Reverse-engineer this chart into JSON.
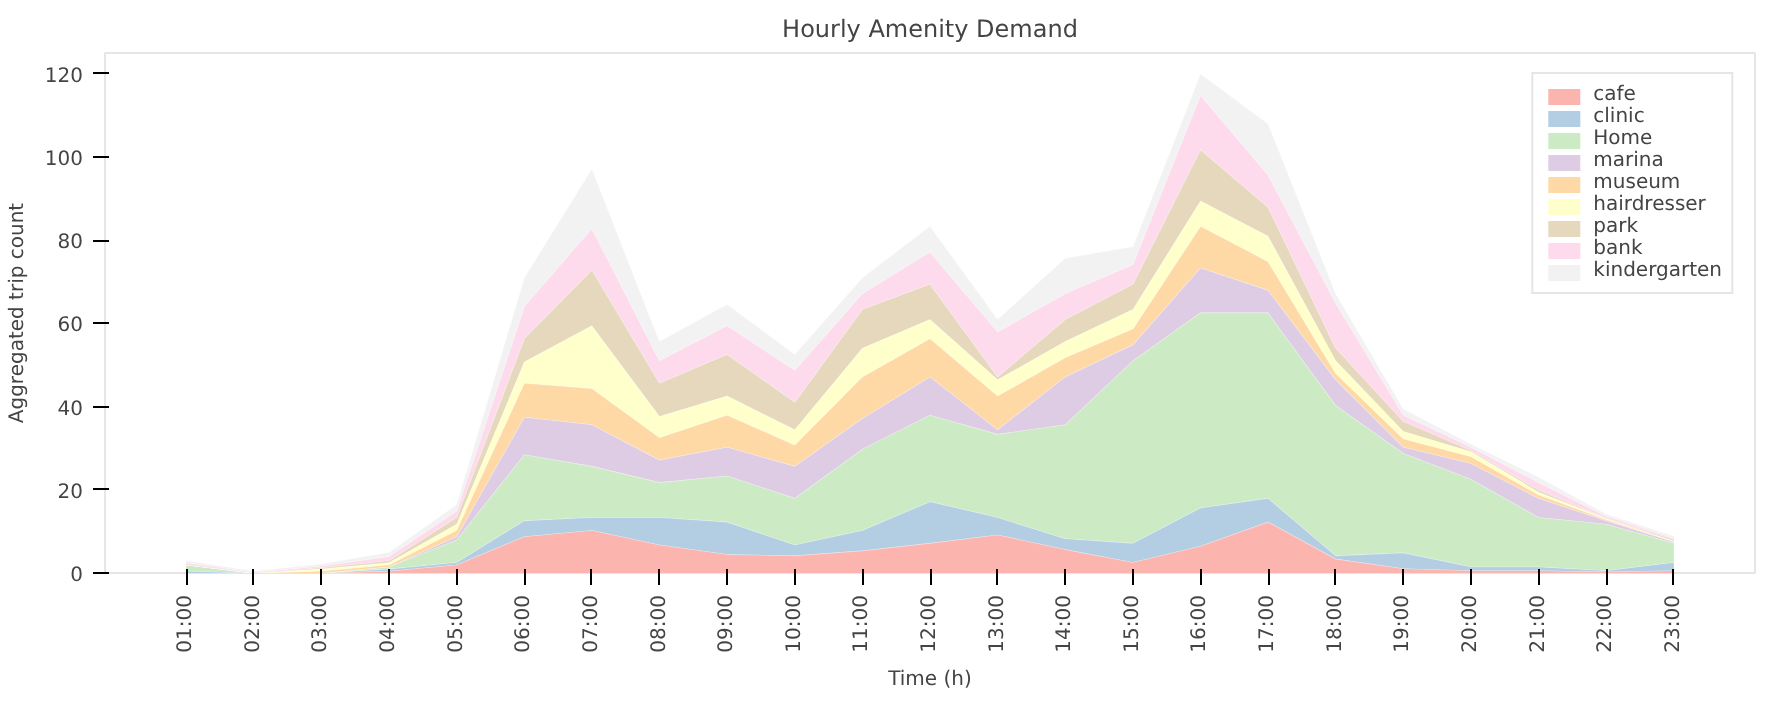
{
  "chart_data": {
    "type": "area",
    "stacked": true,
    "title": "Hourly Amenity Demand",
    "xlabel": "Time (h)",
    "ylabel": "Aggregated trip count",
    "categories": [
      "01:00",
      "02:00",
      "03:00",
      "04:00",
      "05:00",
      "06:00",
      "07:00",
      "08:00",
      "09:00",
      "10:00",
      "11:00",
      "12:00",
      "13:00",
      "14:00",
      "15:00",
      "16:00",
      "17:00",
      "18:00",
      "19:00",
      "20:00",
      "21:00",
      "22:00",
      "23:00"
    ],
    "ylim": [
      0,
      125
    ],
    "yticks": [
      0,
      20,
      40,
      60,
      80,
      100,
      120
    ],
    "grid": false,
    "legend": "top right",
    "series": [
      {
        "name": "cafe",
        "color": "#fbb4ae",
        "values": [
          0,
          0,
          0,
          0.5,
          2,
          8.8,
          10.3,
          6.8,
          4.5,
          4.2,
          5.4,
          7.2,
          9.2,
          5.7,
          2.6,
          6.5,
          12.3,
          3.4,
          1.1,
          0.6,
          0.6,
          0.3,
          0.6
        ]
      },
      {
        "name": "clinic",
        "color": "#b3cde3",
        "values": [
          0.5,
          0,
          0,
          0.5,
          0.6,
          3.8,
          3.1,
          6.6,
          7.8,
          2.6,
          4.9,
          10,
          4.2,
          2.6,
          4.6,
          9.2,
          5.7,
          0.8,
          3.8,
          0.9,
          0.9,
          0.3,
          2
        ]
      },
      {
        "name": "Home",
        "color": "#ccebc5",
        "values": [
          1.5,
          0,
          0,
          0.5,
          5.4,
          15.9,
          12.3,
          8.4,
          11.1,
          11.2,
          19.5,
          20.8,
          20,
          27.4,
          43.9,
          46.9,
          44.6,
          36.1,
          23.9,
          21.1,
          11.9,
          11.2,
          4.6
        ]
      },
      {
        "name": "marina",
        "color": "#decbe4",
        "values": [
          0,
          0,
          0,
          0,
          0.8,
          9,
          10,
          5.4,
          6.9,
          7.7,
          7.4,
          9.2,
          1.1,
          11.5,
          3.8,
          10.8,
          5.4,
          6.2,
          1.5,
          3.8,
          4.6,
          0.8,
          0.3
        ]
      },
      {
        "name": "museum",
        "color": "#fed9a6",
        "values": [
          0,
          0,
          0.5,
          0.5,
          1.5,
          8.2,
          8.7,
          5.4,
          7.7,
          5.1,
          10,
          9.2,
          8.1,
          4.6,
          3.8,
          10,
          6.9,
          1.5,
          2,
          1.6,
          0.8,
          0.3,
          0.1
        ]
      },
      {
        "name": "hairdresser",
        "color": "#ffffcc",
        "values": [
          0,
          0,
          0.5,
          0.5,
          1.5,
          5.1,
          15.1,
          5.1,
          4.6,
          3.7,
          6.9,
          4.6,
          3.9,
          3.9,
          4.7,
          6.1,
          6.1,
          3.1,
          1.8,
          1.2,
          0.7,
          0.2,
          0.1
        ]
      },
      {
        "name": "park",
        "color": "#e5d8bd",
        "values": [
          0,
          0,
          0.3,
          0.5,
          1.6,
          5.6,
          13.4,
          8,
          10,
          6.6,
          9.3,
          8.5,
          0.7,
          5.3,
          6.1,
          12.3,
          7,
          3,
          2.4,
          0.3,
          0.5,
          0.1,
          0.4
        ]
      },
      {
        "name": "bank",
        "color": "#fddaec",
        "values": [
          0.5,
          0.2,
          0.4,
          1,
          1.5,
          7.7,
          10,
          5.4,
          6.9,
          7.7,
          3.8,
          7.7,
          10.8,
          6.2,
          4.7,
          13.1,
          7.7,
          10.8,
          1.5,
          0.8,
          1.8,
          0.5,
          0.3
        ]
      },
      {
        "name": "kindergarten",
        "color": "#f2f2f2",
        "values": [
          0.5,
          0.3,
          0.5,
          1,
          1.6,
          6.9,
          14.3,
          4.6,
          5.1,
          3.8,
          3.8,
          6.2,
          3,
          8.5,
          4.3,
          5.1,
          12.3,
          2.3,
          1.5,
          0.7,
          1.3,
          0.5,
          0.5
        ]
      }
    ]
  }
}
